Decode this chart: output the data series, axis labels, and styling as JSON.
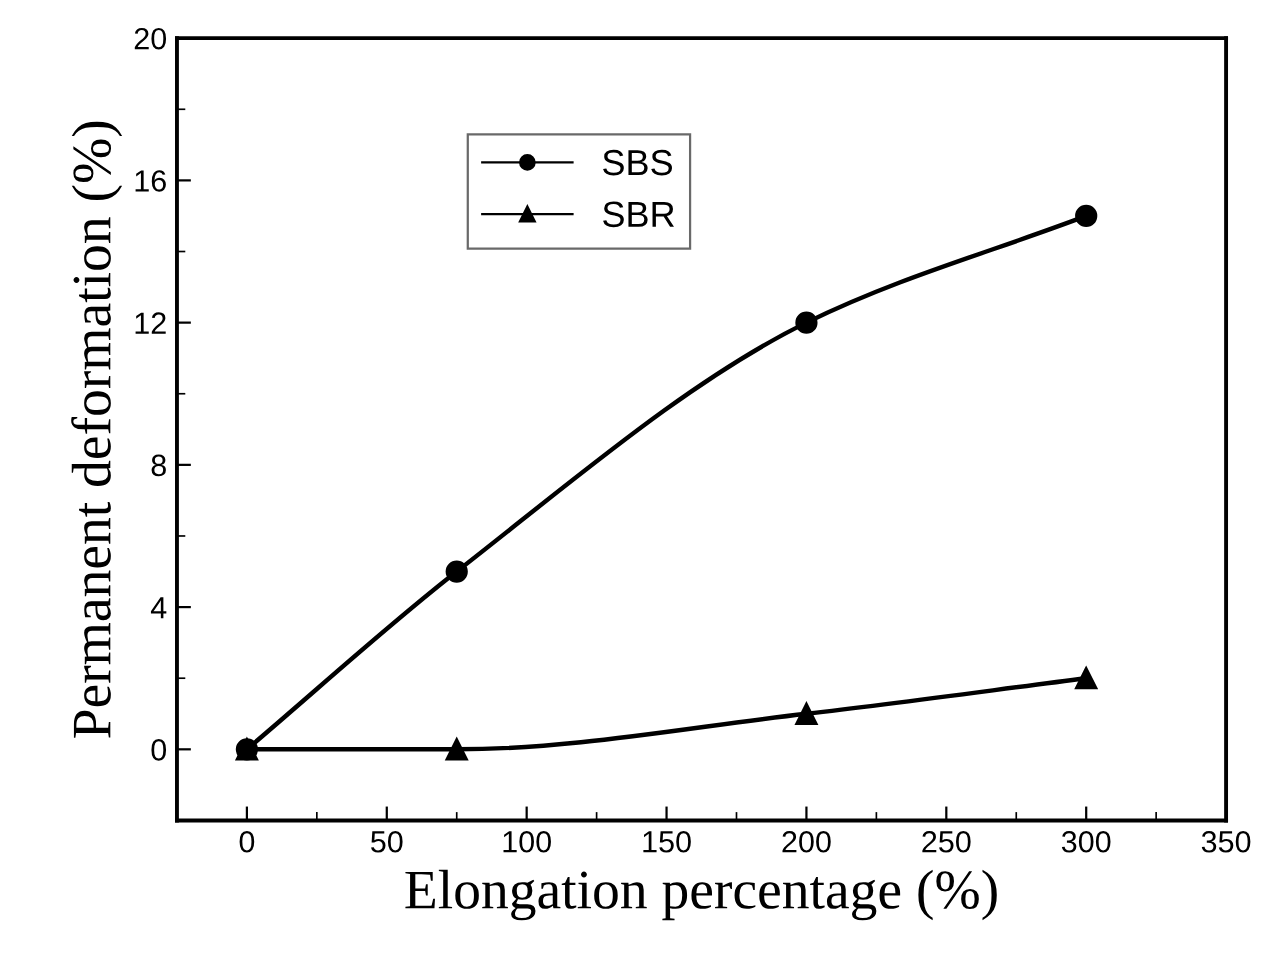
{
  "chart_data": {
    "type": "line",
    "xlabel": "Elongation percentage (%)",
    "ylabel": "Permanent deformation (%)",
    "x": [
      0,
      75,
      200,
      300
    ],
    "series": [
      {
        "name": "SBS",
        "color": "#000000",
        "values": [
          0,
          5,
          12,
          15
        ],
        "marker": "circle"
      },
      {
        "name": "SBR",
        "color": "#000000",
        "values": [
          0,
          0,
          1,
          2
        ],
        "marker": "triangle"
      }
    ],
    "xlim": [
      -25,
      350
    ],
    "xticks": [
      0,
      50,
      100,
      150,
      200,
      250,
      300,
      350
    ],
    "ylim": [
      -2,
      20
    ],
    "yticks": [
      0,
      4,
      8,
      12,
      16,
      20
    ],
    "grid": false,
    "legend": "top left",
    "line_style": "solid"
  }
}
